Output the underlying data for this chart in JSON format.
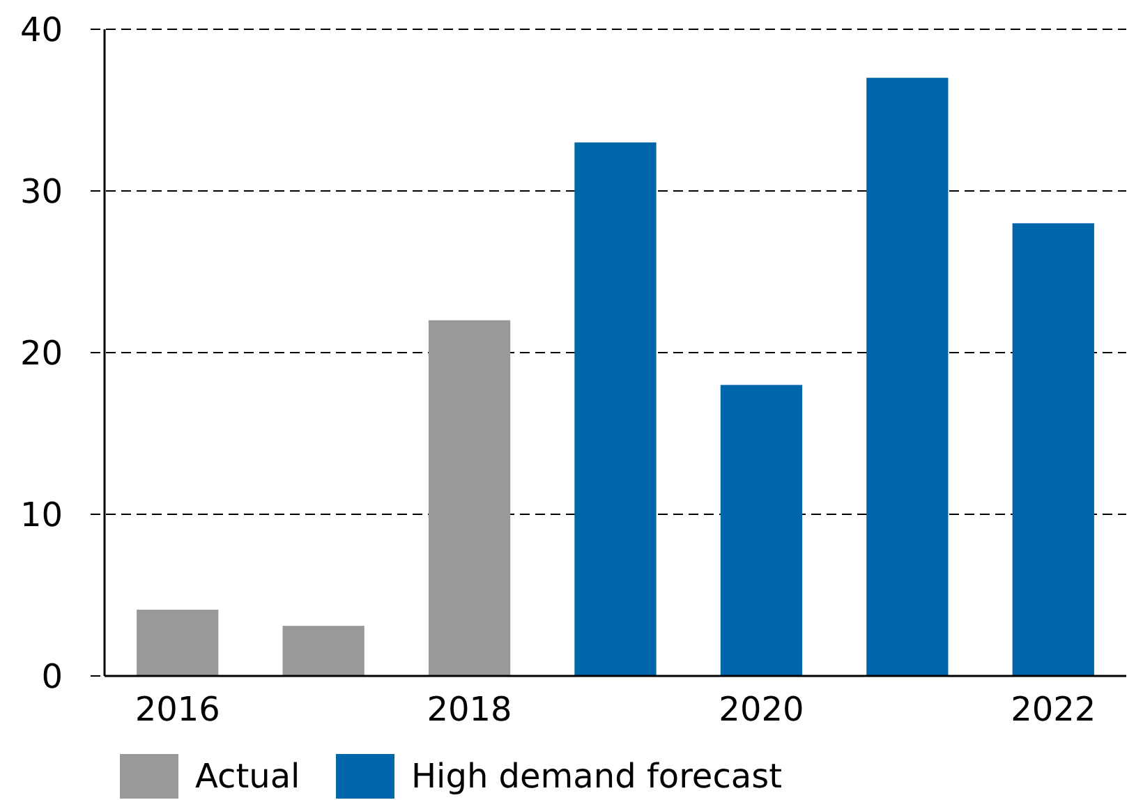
{
  "chart_data": {
    "type": "bar",
    "categories": [
      "2016",
      null,
      "2018",
      null,
      "2020",
      null,
      "2022"
    ],
    "series": [
      {
        "name": "Actual",
        "color": "#999999",
        "values": [
          4.1,
          3.1,
          22,
          null,
          null,
          null,
          null
        ]
      },
      {
        "name": "High demand forecast",
        "color": "#0066aa",
        "values": [
          null,
          null,
          null,
          33,
          18,
          37,
          28
        ]
      }
    ],
    "ylim": [
      0,
      40
    ],
    "yticks": [
      0,
      10,
      20,
      30,
      40
    ],
    "grid": "y",
    "legend": "bottom"
  }
}
